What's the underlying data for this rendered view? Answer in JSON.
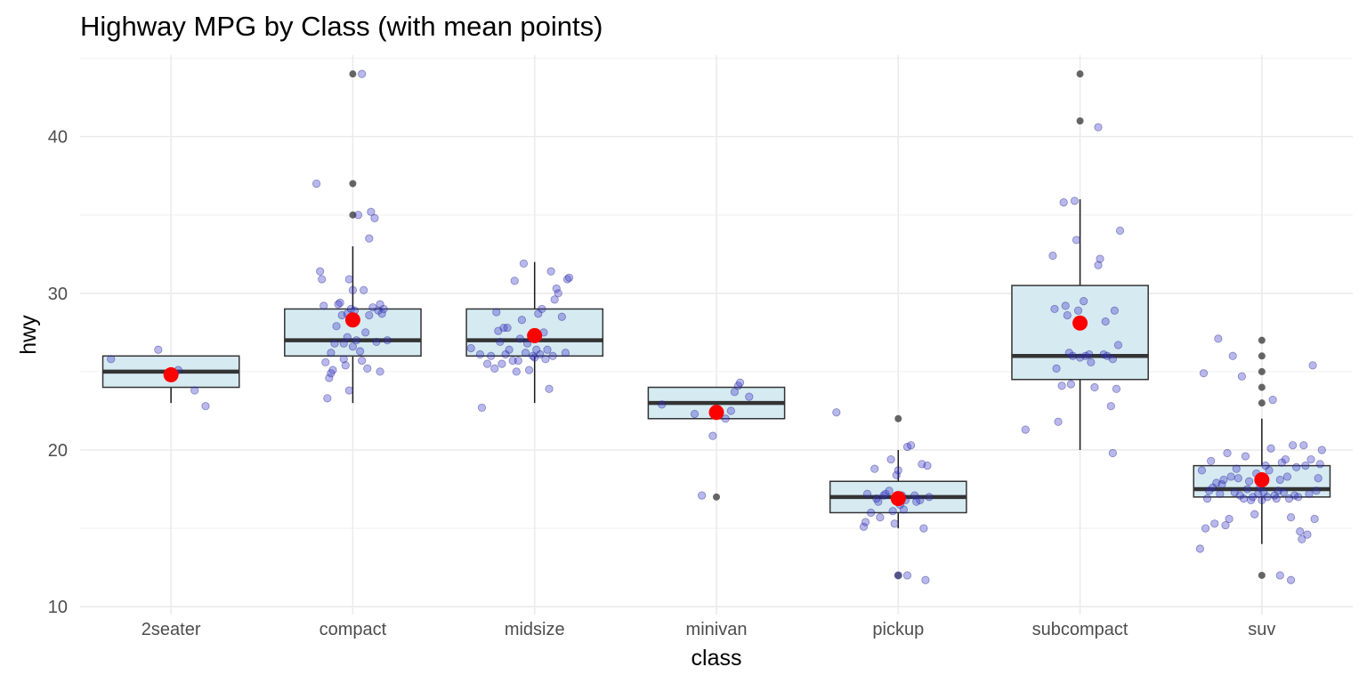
{
  "chart_data": {
    "type": "box",
    "title": "Highway MPG by Class (with mean points)",
    "xlabel": "class",
    "ylabel": "hwy",
    "ylim": [
      9.5,
      45.2
    ],
    "yticks": [
      10,
      20,
      30,
      40
    ],
    "grid": true,
    "categories": [
      "2seater",
      "compact",
      "midsize",
      "minivan",
      "pickup",
      "subcompact",
      "suv"
    ],
    "colors": {
      "box_fill": "#d6eaf2",
      "box_stroke": "#333333",
      "median": "#333333",
      "jitter_point": "#3333cc",
      "outlier": "#333333",
      "mean_point": "#ff0000",
      "grid_major": "#ebebeb",
      "grid_minor": "#f3f3f3"
    },
    "boxes": [
      {
        "q1": 24,
        "median": 25,
        "q3": 26,
        "whisker_low": 23,
        "whisker_high": 26,
        "mean": 24.8,
        "outliers": []
      },
      {
        "q1": 26,
        "median": 27,
        "q3": 29,
        "whisker_low": 23,
        "whisker_high": 33,
        "mean": 28.3,
        "outliers": [
          35,
          37,
          44
        ]
      },
      {
        "q1": 26,
        "median": 27,
        "q3": 29,
        "whisker_low": 23,
        "whisker_high": 32,
        "mean": 27.3,
        "outliers": []
      },
      {
        "q1": 22,
        "median": 23,
        "q3": 24,
        "whisker_low": 22,
        "whisker_high": 24,
        "mean": 22.4,
        "outliers": [
          17
        ]
      },
      {
        "q1": 16,
        "median": 17,
        "q3": 18,
        "whisker_low": 15,
        "whisker_high": 20,
        "mean": 16.9,
        "outliers": [
          12,
          22
        ]
      },
      {
        "q1": 24.5,
        "median": 26,
        "q3": 30.5,
        "whisker_low": 20,
        "whisker_high": 36,
        "mean": 28.1,
        "outliers": [
          41,
          44
        ]
      },
      {
        "q1": 17,
        "median": 17.5,
        "q3": 19,
        "whisker_low": 14,
        "whisker_high": 22,
        "mean": 18.1,
        "outliers": [
          12,
          23,
          24,
          25,
          26,
          27
        ]
      }
    ],
    "jitter_points": [
      [
        [
          -0.33,
          25.8
        ],
        [
          -0.07,
          26.4
        ],
        [
          0.04,
          25.1
        ],
        [
          0.13,
          23.8
        ],
        [
          0.19,
          22.8
        ]
      ],
      [
        [
          -0.2,
          37.0
        ],
        [
          -0.18,
          31.4
        ],
        [
          -0.17,
          30.9
        ],
        [
          -0.16,
          29.2
        ],
        [
          -0.15,
          25.6
        ],
        [
          -0.14,
          23.3
        ],
        [
          -0.13,
          24.6
        ],
        [
          -0.12,
          24.9
        ],
        [
          -0.12,
          26.2
        ],
        [
          -0.11,
          25.1
        ],
        [
          -0.1,
          26.8
        ],
        [
          -0.09,
          27.9
        ],
        [
          -0.08,
          29.3
        ],
        [
          -0.07,
          29.4
        ],
        [
          -0.06,
          28.6
        ],
        [
          -0.05,
          25.8
        ],
        [
          -0.05,
          26.8
        ],
        [
          -0.04,
          25.4
        ],
        [
          -0.03,
          27.2
        ],
        [
          -0.03,
          28.7
        ],
        [
          -0.02,
          23.8
        ],
        [
          -0.02,
          30.9
        ],
        [
          -0.01,
          29.0
        ],
        [
          0.0,
          30.2
        ],
        [
          0.0,
          26.6
        ],
        [
          0.01,
          28.9
        ],
        [
          0.02,
          27.0
        ],
        [
          0.03,
          35.0
        ],
        [
          0.04,
          26.3
        ],
        [
          0.05,
          25.7
        ],
        [
          0.06,
          30.2
        ],
        [
          0.07,
          27.5
        ],
        [
          0.08,
          25.2
        ],
        [
          0.09,
          28.6
        ],
        [
          0.09,
          33.5
        ],
        [
          0.1,
          35.2
        ],
        [
          0.11,
          29.1
        ],
        [
          0.12,
          34.8
        ],
        [
          0.13,
          26.9
        ],
        [
          0.14,
          28.9
        ],
        [
          0.15,
          29.3
        ],
        [
          0.15,
          25.0
        ],
        [
          0.16,
          28.7
        ],
        [
          0.17,
          29.0
        ],
        [
          0.19,
          27.0
        ],
        [
          0.05,
          44.0
        ]
      ],
      [
        [
          -0.35,
          26.5
        ],
        [
          -0.3,
          26.1
        ],
        [
          -0.29,
          22.7
        ],
        [
          -0.26,
          25.5
        ],
        [
          -0.24,
          26.0
        ],
        [
          -0.22,
          25.2
        ],
        [
          -0.21,
          28.8
        ],
        [
          -0.2,
          27.6
        ],
        [
          -0.19,
          26.9
        ],
        [
          -0.18,
          25.5
        ],
        [
          -0.17,
          27.8
        ],
        [
          -0.16,
          26.1
        ],
        [
          -0.15,
          27.8
        ],
        [
          -0.14,
          26.4
        ],
        [
          -0.12,
          25.7
        ],
        [
          -0.11,
          30.8
        ],
        [
          -0.1,
          25.0
        ],
        [
          -0.09,
          25.7
        ],
        [
          -0.08,
          27.1
        ],
        [
          -0.07,
          28.3
        ],
        [
          -0.06,
          31.9
        ],
        [
          -0.05,
          26.2
        ],
        [
          -0.04,
          26.8
        ],
        [
          -0.03,
          25.1
        ],
        [
          -0.02,
          27.3
        ],
        [
          -0.01,
          26.0
        ],
        [
          0.0,
          25.9
        ],
        [
          0.01,
          26.4
        ],
        [
          0.02,
          28.7
        ],
        [
          0.03,
          26.1
        ],
        [
          0.04,
          29.0
        ],
        [
          0.05,
          27.5
        ],
        [
          0.06,
          25.8
        ],
        [
          0.07,
          26.4
        ],
        [
          0.08,
          23.9
        ],
        [
          0.09,
          31.4
        ],
        [
          0.1,
          26.0
        ],
        [
          0.11,
          29.6
        ],
        [
          0.12,
          30.3
        ],
        [
          0.13,
          30.0
        ],
        [
          0.15,
          28.5
        ],
        [
          0.17,
          26.2
        ],
        [
          0.18,
          30.9
        ],
        [
          0.19,
          31.0
        ]
      ],
      [
        [
          -0.3,
          22.9
        ],
        [
          -0.12,
          22.3
        ],
        [
          -0.08,
          17.1
        ],
        [
          -0.02,
          20.9
        ],
        [
          0.01,
          22.6
        ],
        [
          0.05,
          22.0
        ],
        [
          0.08,
          22.5
        ],
        [
          0.1,
          23.7
        ],
        [
          0.12,
          24.1
        ],
        [
          0.13,
          24.3
        ],
        [
          0.18,
          23.4
        ]
      ],
      [
        [
          -0.34,
          22.4
        ],
        [
          -0.19,
          15.1
        ],
        [
          -0.18,
          15.4
        ],
        [
          -0.17,
          17.2
        ],
        [
          -0.15,
          16.0
        ],
        [
          -0.13,
          18.8
        ],
        [
          -0.12,
          16.9
        ],
        [
          -0.11,
          16.7
        ],
        [
          -0.1,
          15.7
        ],
        [
          -0.08,
          17.1
        ],
        [
          -0.07,
          17.2
        ],
        [
          -0.05,
          17.4
        ],
        [
          -0.04,
          19.4
        ],
        [
          -0.03,
          16.1
        ],
        [
          -0.02,
          15.3
        ],
        [
          -0.01,
          18.4
        ],
        [
          0.0,
          18.7
        ],
        [
          0.01,
          16.5
        ],
        [
          0.02,
          17.1
        ],
        [
          0.03,
          16.2
        ],
        [
          0.04,
          16.8
        ],
        [
          0.05,
          20.2
        ],
        [
          0.07,
          20.3
        ],
        [
          0.09,
          17.1
        ],
        [
          0.1,
          16.7
        ],
        [
          0.12,
          16.8
        ],
        [
          0.13,
          19.1
        ],
        [
          0.14,
          15.0
        ],
        [
          0.15,
          11.7
        ],
        [
          0.16,
          19.0
        ],
        [
          0.17,
          17.0
        ],
        [
          0.0,
          12.0
        ],
        [
          0.05,
          12.0
        ]
      ],
      [
        [
          -0.3,
          21.3
        ],
        [
          -0.15,
          32.4
        ],
        [
          -0.14,
          29.0
        ],
        [
          -0.13,
          25.2
        ],
        [
          -0.12,
          21.8
        ],
        [
          -0.1,
          24.1
        ],
        [
          -0.09,
          35.8
        ],
        [
          -0.08,
          29.2
        ],
        [
          -0.07,
          28.6
        ],
        [
          -0.06,
          26.2
        ],
        [
          -0.05,
          24.2
        ],
        [
          -0.04,
          26.0
        ],
        [
          -0.03,
          35.9
        ],
        [
          -0.02,
          33.4
        ],
        [
          -0.01,
          28.9
        ],
        [
          0.0,
          25.9
        ],
        [
          0.01,
          28.0
        ],
        [
          0.02,
          29.5
        ],
        [
          0.03,
          26.0
        ],
        [
          0.05,
          26.1
        ],
        [
          0.06,
          25.6
        ],
        [
          0.08,
          24.0
        ],
        [
          0.1,
          31.8
        ],
        [
          0.11,
          32.2
        ],
        [
          0.13,
          26.1
        ],
        [
          0.14,
          28.2
        ],
        [
          0.15,
          26.0
        ],
        [
          0.17,
          22.8
        ],
        [
          0.18,
          25.8
        ],
        [
          0.19,
          28.9
        ],
        [
          0.2,
          23.9
        ],
        [
          0.21,
          26.7
        ],
        [
          0.22,
          34.0
        ],
        [
          0.18,
          19.8
        ],
        [
          0.1,
          40.6
        ]
      ],
      [
        [
          -0.34,
          13.7
        ],
        [
          -0.33,
          18.7
        ],
        [
          -0.32,
          24.9
        ],
        [
          -0.31,
          15.0
        ],
        [
          -0.3,
          16.9
        ],
        [
          -0.29,
          17.4
        ],
        [
          -0.28,
          19.3
        ],
        [
          -0.27,
          17.6
        ],
        [
          -0.26,
          15.3
        ],
        [
          -0.25,
          17.9
        ],
        [
          -0.24,
          27.1
        ],
        [
          -0.23,
          17.2
        ],
        [
          -0.22,
          17.8
        ],
        [
          -0.21,
          18.1
        ],
        [
          -0.2,
          15.2
        ],
        [
          -0.19,
          19.8
        ],
        [
          -0.18,
          15.6
        ],
        [
          -0.17,
          18.3
        ],
        [
          -0.16,
          26.0
        ],
        [
          -0.15,
          17.3
        ],
        [
          -0.14,
          18.8
        ],
        [
          -0.13,
          18.2
        ],
        [
          -0.12,
          17.1
        ],
        [
          -0.11,
          24.7
        ],
        [
          -0.1,
          16.9
        ],
        [
          -0.09,
          19.6
        ],
        [
          -0.08,
          17.5
        ],
        [
          -0.07,
          18.0
        ],
        [
          -0.06,
          16.8
        ],
        [
          -0.05,
          17.0
        ],
        [
          -0.04,
          15.9
        ],
        [
          -0.03,
          18.5
        ],
        [
          -0.02,
          17.2
        ],
        [
          -0.01,
          17.6
        ],
        [
          0.0,
          16.8
        ],
        [
          0.01,
          17.3
        ],
        [
          0.02,
          19.0
        ],
        [
          0.03,
          17.0
        ],
        [
          0.04,
          18.7
        ],
        [
          0.05,
          20.1
        ],
        [
          0.06,
          23.2
        ],
        [
          0.07,
          17.1
        ],
        [
          0.08,
          16.9
        ],
        [
          0.09,
          17.4
        ],
        [
          0.1,
          18.1
        ],
        [
          0.11,
          19.2
        ],
        [
          0.12,
          17.3
        ],
        [
          0.13,
          19.4
        ],
        [
          0.14,
          18.3
        ],
        [
          0.15,
          16.9
        ],
        [
          0.16,
          15.7
        ],
        [
          0.17,
          20.3
        ],
        [
          0.18,
          17.1
        ],
        [
          0.19,
          18.9
        ],
        [
          0.2,
          17.0
        ],
        [
          0.21,
          14.8
        ],
        [
          0.22,
          14.3
        ],
        [
          0.23,
          20.3
        ],
        [
          0.24,
          19.0
        ],
        [
          0.25,
          14.6
        ],
        [
          0.26,
          17.2
        ],
        [
          0.27,
          19.4
        ],
        [
          0.28,
          25.4
        ],
        [
          0.29,
          15.6
        ],
        [
          0.3,
          17.4
        ],
        [
          0.31,
          18.2
        ],
        [
          0.32,
          19.1
        ],
        [
          0.33,
          20.0
        ],
        [
          0.1,
          12.0
        ],
        [
          0.16,
          11.7
        ]
      ]
    ]
  }
}
